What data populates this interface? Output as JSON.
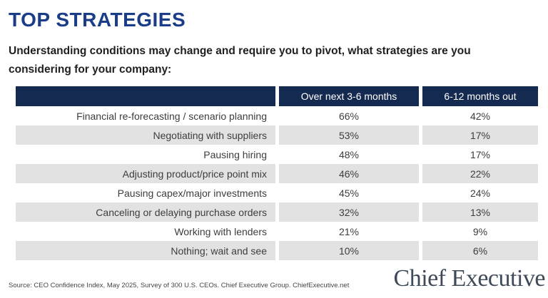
{
  "colors": {
    "title_blue": "#1b3c87",
    "table_header_navy": "#152a50",
    "row_stripe_gray": "#e2e2e2",
    "body_text": "#3d3d3d",
    "logo_gray": "#3f4a59"
  },
  "header": {
    "title": "TOP STRATEGIES",
    "subtitle": "Understanding conditions may change and require you to pivot, what strategies are you considering for your company:"
  },
  "table": {
    "columns": [
      "Over next 3-6 months",
      "6-12 months out"
    ],
    "rows": [
      {
        "label": "Financial re-forecasting / scenario planning",
        "next_3_6": "66%",
        "out_6_12": "42%"
      },
      {
        "label": "Negotiating with suppliers",
        "next_3_6": "53%",
        "out_6_12": "17%"
      },
      {
        "label": "Pausing hiring",
        "next_3_6": "48%",
        "out_6_12": "17%"
      },
      {
        "label": "Adjusting product/price point mix",
        "next_3_6": "46%",
        "out_6_12": "22%"
      },
      {
        "label": "Pausing capex/major investments",
        "next_3_6": "45%",
        "out_6_12": "24%"
      },
      {
        "label": "Canceling or delaying purchase orders",
        "next_3_6": "32%",
        "out_6_12": "13%"
      },
      {
        "label": "Working with lenders",
        "next_3_6": "21%",
        "out_6_12": "9%"
      },
      {
        "label": "Nothing; wait and see",
        "next_3_6": "10%",
        "out_6_12": "6%"
      }
    ]
  },
  "footer": {
    "source": "Source: CEO Confidence Index, May 2025, Survey of 300 U.S. CEOs. Chief Executive Group. ChiefExecutive.net",
    "logo": "Chief Executive"
  },
  "chart_data": {
    "type": "table",
    "title": "TOP STRATEGIES",
    "subtitle": "Understanding conditions may change and require you to pivot, what strategies are you considering for your company:",
    "categories": [
      "Financial re-forecasting / scenario planning",
      "Negotiating with suppliers",
      "Pausing hiring",
      "Adjusting product/price point mix",
      "Pausing capex/major investments",
      "Canceling or delaying purchase orders",
      "Working with lenders",
      "Nothing; wait and see"
    ],
    "series": [
      {
        "name": "Over next 3-6 months",
        "values": [
          66,
          53,
          48,
          46,
          45,
          32,
          21,
          10
        ]
      },
      {
        "name": "6-12 months out",
        "values": [
          42,
          17,
          17,
          22,
          24,
          13,
          9,
          6
        ]
      }
    ],
    "unit": "%",
    "source": "Source: CEO Confidence Index, May 2025, Survey of 300 U.S. CEOs. Chief Executive Group. ChiefExecutive.net"
  }
}
